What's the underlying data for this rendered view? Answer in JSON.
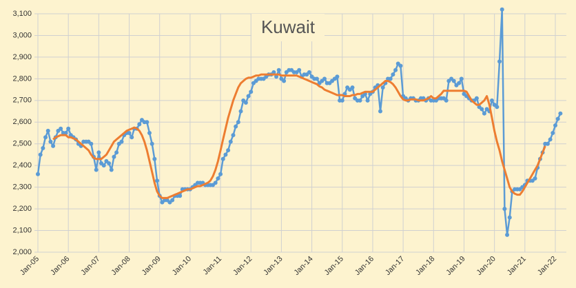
{
  "chart_data": {
    "type": "line",
    "title": "Kuwait",
    "categories": [
      "Jan-05",
      null,
      null,
      null,
      null,
      null,
      null,
      null,
      null,
      null,
      null,
      null,
      "Jan-06",
      null,
      null,
      null,
      null,
      null,
      null,
      null,
      null,
      null,
      null,
      null,
      "Jan-07",
      null,
      null,
      null,
      null,
      null,
      null,
      null,
      null,
      null,
      null,
      null,
      "Jan-08",
      null,
      null,
      null,
      null,
      null,
      null,
      null,
      null,
      null,
      null,
      null,
      "Jan-09",
      null,
      null,
      null,
      null,
      null,
      null,
      null,
      null,
      null,
      null,
      null,
      "Jan-10",
      null,
      null,
      null,
      null,
      null,
      null,
      null,
      null,
      null,
      null,
      null,
      "Jan-11",
      null,
      null,
      null,
      null,
      null,
      null,
      null,
      null,
      null,
      null,
      null,
      "Jan-12",
      null,
      null,
      null,
      null,
      null,
      null,
      null,
      null,
      null,
      null,
      null,
      "Jan-13",
      null,
      null,
      null,
      null,
      null,
      null,
      null,
      null,
      null,
      null,
      null,
      "Jan-14",
      null,
      null,
      null,
      null,
      null,
      null,
      null,
      null,
      null,
      null,
      null,
      "Jan-15",
      null,
      null,
      null,
      null,
      null,
      null,
      null,
      null,
      null,
      null,
      null,
      "Jan-16",
      null,
      null,
      null,
      null,
      null,
      null,
      null,
      null,
      null,
      null,
      null,
      "Jan-17",
      null,
      null,
      null,
      null,
      null,
      null,
      null,
      null,
      null,
      null,
      null,
      "Jan-18",
      null,
      null,
      null,
      null,
      null,
      null,
      null,
      null,
      null,
      null,
      null,
      "Jan-19",
      null,
      null,
      null,
      null,
      null,
      null,
      null,
      null,
      null,
      null,
      null,
      "Jan-20",
      null,
      null,
      null,
      null,
      null,
      null,
      null,
      null,
      null,
      null,
      null,
      "Jan-21",
      null,
      null,
      null,
      null,
      null,
      null,
      null,
      null,
      null,
      null,
      null,
      "Jan-22",
      null,
      null
    ],
    "series": [
      {
        "color": "#5b9bd5",
        "markers": true,
        "values": [
          2360,
          2450,
          2480,
          2530,
          2560,
          2510,
          2490,
          2530,
          2560,
          2570,
          2550,
          2550,
          2570,
          2540,
          2530,
          2520,
          2500,
          2490,
          2510,
          2510,
          2510,
          2500,
          2440,
          2380,
          2460,
          2410,
          2400,
          2420,
          2410,
          2380,
          2440,
          2460,
          2500,
          2510,
          2540,
          2550,
          2550,
          2530,
          2570,
          2570,
          2590,
          2610,
          2600,
          2600,
          2550,
          2500,
          2430,
          2330,
          2260,
          2230,
          2240,
          2240,
          2230,
          2240,
          2260,
          2260,
          2260,
          2290,
          2290,
          2290,
          2290,
          2300,
          2310,
          2320,
          2320,
          2320,
          2310,
          2310,
          2310,
          2310,
          2320,
          2340,
          2360,
          2430,
          2450,
          2470,
          2510,
          2540,
          2580,
          2600,
          2650,
          2700,
          2690,
          2720,
          2740,
          2780,
          2790,
          2800,
          2800,
          2800,
          2810,
          2820,
          2820,
          2830,
          2810,
          2840,
          2800,
          2790,
          2830,
          2840,
          2840,
          2830,
          2830,
          2840,
          2810,
          2820,
          2820,
          2830,
          2810,
          2800,
          2800,
          2780,
          2790,
          2800,
          2780,
          2780,
          2790,
          2800,
          2810,
          2700,
          2700,
          2730,
          2760,
          2750,
          2760,
          2710,
          2700,
          2700,
          2720,
          2730,
          2700,
          2730,
          2740,
          2760,
          2770,
          2650,
          2760,
          2780,
          2800,
          2800,
          2820,
          2840,
          2870,
          2860,
          2720,
          2710,
          2700,
          2710,
          2710,
          2700,
          2700,
          2710,
          2710,
          2700,
          2710,
          2700,
          2700,
          2700,
          2710,
          2710,
          2710,
          2700,
          2790,
          2800,
          2790,
          2770,
          2780,
          2800,
          2730,
          2720,
          2710,
          2700,
          2700,
          2710,
          2670,
          2660,
          2640,
          2660,
          2650,
          2700,
          2680,
          2670,
          2880,
          3120,
          2200,
          2080,
          2160,
          2280,
          2290,
          2290,
          2290,
          2300,
          2310,
          2330,
          2330,
          2330,
          2340,
          2390,
          2430,
          2460,
          2500,
          2500,
          2520,
          2550,
          2585,
          2615,
          2640
        ]
      },
      {
        "color": "#ed7d31",
        "markers": false,
        "values": [
          null,
          null,
          null,
          null,
          null,
          null,
          2520,
          2530,
          2535,
          2540,
          2540,
          2540,
          2530,
          2530,
          2525,
          2520,
          2510,
          2500,
          2490,
          2480,
          2470,
          2450,
          2435,
          2430,
          2430,
          2430,
          2440,
          2450,
          2470,
          2490,
          2510,
          2520,
          2530,
          2540,
          2550,
          2560,
          2565,
          2570,
          2575,
          2570,
          2560,
          2540,
          2510,
          2470,
          2420,
          2370,
          2320,
          2280,
          2260,
          2250,
          2250,
          2250,
          2255,
          2260,
          2265,
          2270,
          2275,
          2280,
          2285,
          2290,
          2290,
          2295,
          2300,
          2305,
          2305,
          2310,
          2315,
          2320,
          2330,
          2350,
          2380,
          2420,
          2470,
          2520,
          2570,
          2620,
          2660,
          2700,
          2730,
          2760,
          2780,
          2790,
          2800,
          2805,
          2805,
          2810,
          2815,
          2815,
          2820,
          2820,
          2820,
          2820,
          2820,
          2820,
          2820,
          2820,
          2815,
          2815,
          2815,
          2815,
          2815,
          2815,
          2815,
          2810,
          2805,
          2800,
          2795,
          2790,
          2785,
          2780,
          2775,
          2765,
          2760,
          2750,
          2745,
          2740,
          2735,
          2730,
          2725,
          2725,
          2725,
          2720,
          2720,
          2720,
          2725,
          2725,
          2730,
          2730,
          2735,
          2740,
          2740,
          2740,
          2740,
          2750,
          2760,
          2770,
          2780,
          2790,
          2790,
          2785,
          2775,
          2760,
          2740,
          2720,
          2705,
          2700,
          2700,
          2705,
          2705,
          2705,
          2700,
          2700,
          2700,
          2705,
          2710,
          2720,
          2710,
          2710,
          2720,
          2730,
          2745,
          2745,
          2745,
          2745,
          2745,
          2745,
          2745,
          2745,
          2745,
          2740,
          2720,
          2700,
          2690,
          2680,
          2680,
          2690,
          2700,
          2720,
          2680,
          2620,
          2560,
          2510,
          2470,
          2420,
          2380,
          2340,
          2300,
          2280,
          2270,
          2265,
          2265,
          2280,
          2300,
          2320,
          2340,
          2360,
          2380,
          2400,
          2430,
          2460,
          2490,
          null,
          null,
          null,
          null,
          null,
          null
        ]
      }
    ],
    "ylim": [
      2000,
      3100
    ],
    "yticks": [
      {
        "value": 2000,
        "label": "2,000"
      },
      {
        "value": 2100,
        "label": "2,100"
      },
      {
        "value": 2200,
        "label": "2,200"
      },
      {
        "value": 2300,
        "label": "2,300"
      },
      {
        "value": 2400,
        "label": "2,400"
      },
      {
        "value": 2500,
        "label": "2,500"
      },
      {
        "value": 2600,
        "label": "2,600"
      },
      {
        "value": 2700,
        "label": "2,700"
      },
      {
        "value": 2800,
        "label": "2,800"
      },
      {
        "value": 2900,
        "label": "2,900"
      },
      {
        "value": 3000,
        "label": "3,000"
      },
      {
        "value": 3100,
        "label": "3,100"
      }
    ],
    "grid": true
  }
}
